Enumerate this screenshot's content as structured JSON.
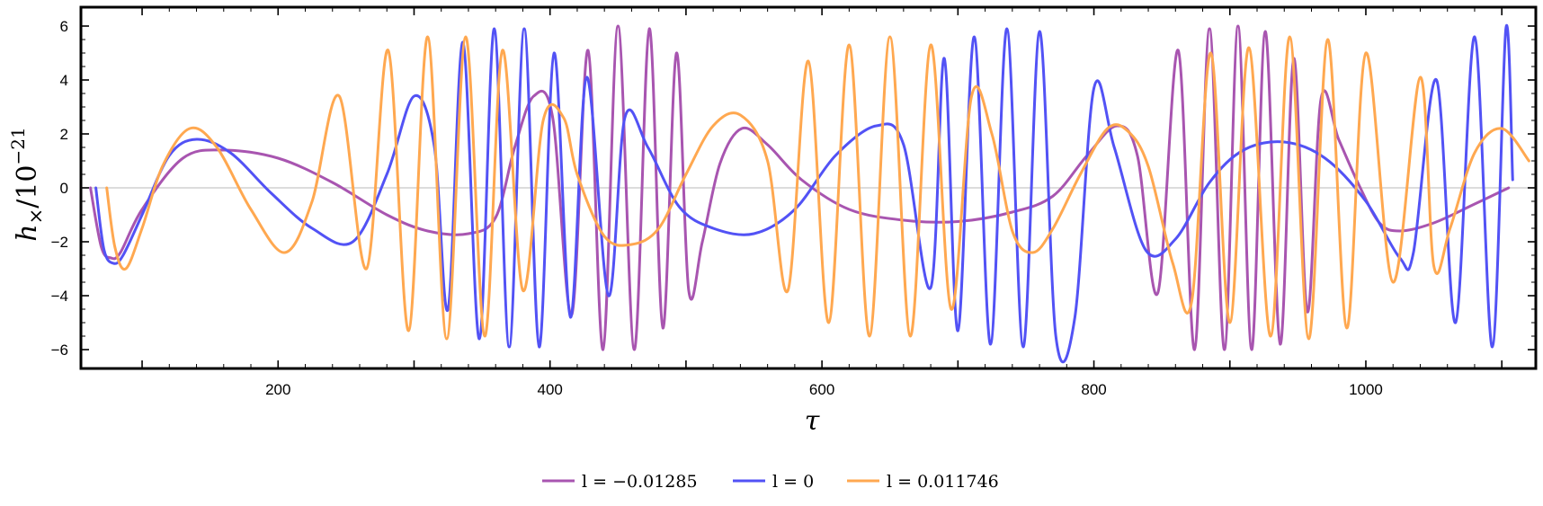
{
  "chart_data": {
    "type": "line",
    "title": "",
    "xlabel": "τ",
    "ylabel": "h×/10⁻²¹",
    "ylabel_main": "h",
    "ylabel_sub": "×",
    "ylabel_denominator": "/10",
    "ylabel_exponent": "−21",
    "xlim": [
      55,
      1125
    ],
    "ylim": [
      -6.7,
      6.7
    ],
    "xticks": [
      200,
      400,
      600,
      800,
      1000
    ],
    "xtick_labels": [
      "200",
      "400",
      "600",
      "800",
      "1000"
    ],
    "yticks": [
      -6,
      -4,
      -2,
      0,
      2,
      4,
      6
    ],
    "ytick_labels": [
      "−6",
      "−4",
      "−2",
      "0",
      "2",
      "4",
      "6"
    ],
    "grid": false,
    "zero_line": true,
    "frame": true,
    "legend_position": "bottom-center",
    "series": [
      {
        "name": "l = −0.01285",
        "color": "#a855b0",
        "x": [
          62,
          70,
          77,
          84,
          100,
          130,
          160,
          200,
          240,
          280,
          310,
          340,
          360,
          374,
          388,
          402,
          416,
          428,
          439,
          450,
          462,
          473,
          483,
          493,
          502,
          512,
          525,
          541,
          560,
          585,
          620,
          660,
          700,
          740,
          770,
          795,
          817,
          832,
          847,
          862,
          874,
          885,
          896,
          906,
          916,
          926,
          937,
          947,
          957,
          967,
          980,
          995,
          1010,
          1025,
          1050,
          1080,
          1105
        ],
        "y": [
          0,
          -2.2,
          -2.6,
          -2.4,
          -0.8,
          1.1,
          1.4,
          1.1,
          0.2,
          -1.0,
          -1.6,
          -1.7,
          -1.1,
          1.5,
          3.4,
          2.6,
          -4.7,
          5.1,
          -6.0,
          6.0,
          -6.0,
          5.9,
          -5.2,
          5.0,
          -3.8,
          -2.0,
          0.9,
          2.2,
          1.6,
          0.3,
          -0.8,
          -1.2,
          -1.25,
          -0.9,
          -0.3,
          1.2,
          2.3,
          1.2,
          -3.9,
          5.1,
          -6.0,
          5.9,
          -6.0,
          6.0,
          -6.0,
          5.8,
          -5.8,
          4.8,
          -4.6,
          3.3,
          1.8,
          0.1,
          -1.3,
          -1.6,
          -1.3,
          -0.6,
          0.0
        ]
      },
      {
        "name": "l = 0",
        "color": "#5252f5",
        "x": [
          66,
          72,
          79,
          86,
          100,
          120,
          140,
          165,
          195,
          225,
          255,
          280,
          300,
          315,
          325,
          336,
          348,
          359,
          370,
          381,
          392,
          403,
          415,
          427,
          443,
          455,
          472,
          495,
          520,
          550,
          580,
          610,
          640,
          660,
          680,
          690,
          700,
          712,
          724,
          736,
          748,
          760,
          772,
          786,
          800,
          815,
          838,
          860,
          885,
          910,
          940,
          970,
          1000,
          1025,
          1035,
          1052,
          1066,
          1080,
          1093,
          1103,
          1108
        ],
        "y": [
          0,
          -2.3,
          -2.8,
          -2.5,
          -1.0,
          1.2,
          1.8,
          1.3,
          -0.2,
          -1.5,
          -2.0,
          0.5,
          3.4,
          1.5,
          -4.5,
          5.4,
          -5.6,
          5.9,
          -5.9,
          5.9,
          -5.9,
          5.0,
          -4.8,
          4.1,
          -4.0,
          2.6,
          1.5,
          -0.7,
          -1.5,
          -1.7,
          -0.8,
          1.2,
          2.3,
          1.6,
          -3.7,
          4.8,
          -5.3,
          5.6,
          -5.8,
          5.9,
          -5.9,
          5.8,
          -5.5,
          -4.8,
          3.7,
          1.5,
          -2.3,
          -1.9,
          0.2,
          1.4,
          1.7,
          1.1,
          -0.5,
          -2.6,
          -2.4,
          4.0,
          -5.0,
          5.6,
          -5.9,
          5.9,
          0.3
        ]
      },
      {
        "name": "l = 0.011746",
        "color": "#ffa850",
        "x": [
          74,
          80,
          88,
          100,
          115,
          135,
          155,
          180,
          205,
          225,
          245,
          265,
          281,
          296,
          310,
          324,
          338,
          352,
          365,
          380,
          395,
          410,
          420,
          440,
          460,
          480,
          500,
          520,
          540,
          560,
          575,
          590,
          605,
          620,
          635,
          650,
          665,
          680,
          695,
          710,
          725,
          740,
          755,
          770,
          790,
          810,
          825,
          840,
          858,
          872,
          886,
          900,
          914,
          930,
          944,
          958,
          972,
          986,
          1000,
          1020,
          1040,
          1050,
          1062,
          1080,
          1100,
          1120
        ],
        "y": [
          0,
          -2.2,
          -3.0,
          -1.5,
          0.8,
          2.2,
          1.5,
          -0.8,
          -2.4,
          -0.5,
          3.4,
          -3.0,
          5.1,
          -5.3,
          5.6,
          -5.6,
          5.6,
          -5.5,
          5.1,
          -3.8,
          2.5,
          2.6,
          0.5,
          -1.8,
          -2.1,
          -1.5,
          0.5,
          2.3,
          2.7,
          1.0,
          -3.8,
          4.7,
          -5.0,
          5.3,
          -5.5,
          5.6,
          -5.5,
          5.3,
          -4.5,
          3.4,
          2.0,
          -1.6,
          -2.4,
          -1.5,
          0.5,
          2.2,
          2.1,
          0.8,
          -2.8,
          -4.2,
          5.0,
          -5.0,
          5.2,
          -5.5,
          5.6,
          -5.6,
          5.5,
          -5.2,
          5.0,
          -3.5,
          4.1,
          -2.9,
          -1.5,
          1.3,
          2.2,
          1.0
        ]
      }
    ]
  }
}
